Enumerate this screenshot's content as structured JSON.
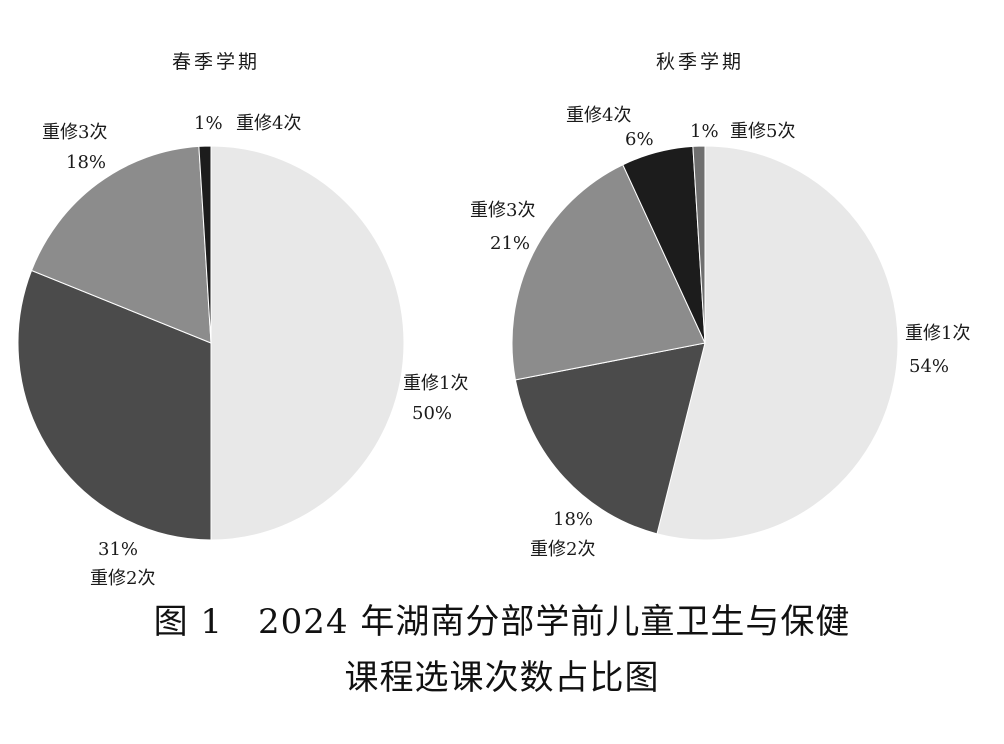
{
  "caption": {
    "line1": "图 1　2024 年湖南分部学前儿童卫生与保健",
    "line2": "课程选课次数占比图"
  },
  "chart_data": [
    {
      "type": "pie",
      "title": "春季学期",
      "labels": [
        "重修1次",
        "重修2次",
        "重修3次",
        "重修4次"
      ],
      "values": [
        50,
        31,
        18,
        1
      ],
      "value_labels": [
        "50%",
        "31%",
        "18%",
        "1%"
      ],
      "colors": [
        "#e8e8e8",
        "#4b4b4b",
        "#8c8c8c",
        "#1c1c1c"
      ],
      "direction": "clockwise from top"
    },
    {
      "type": "pie",
      "title": "秋季学期",
      "labels": [
        "重修1次",
        "重修2次",
        "重修3次",
        "重修4次",
        "重修5次"
      ],
      "values": [
        54,
        18,
        21,
        6,
        1
      ],
      "value_labels": [
        "54%",
        "18%",
        "21%",
        "6%",
        "1%"
      ],
      "colors": [
        "#e8e8e8",
        "#4b4b4b",
        "#8c8c8c",
        "#1c1c1c",
        "#6f6f6f"
      ],
      "direction": "clockwise from top"
    }
  ]
}
